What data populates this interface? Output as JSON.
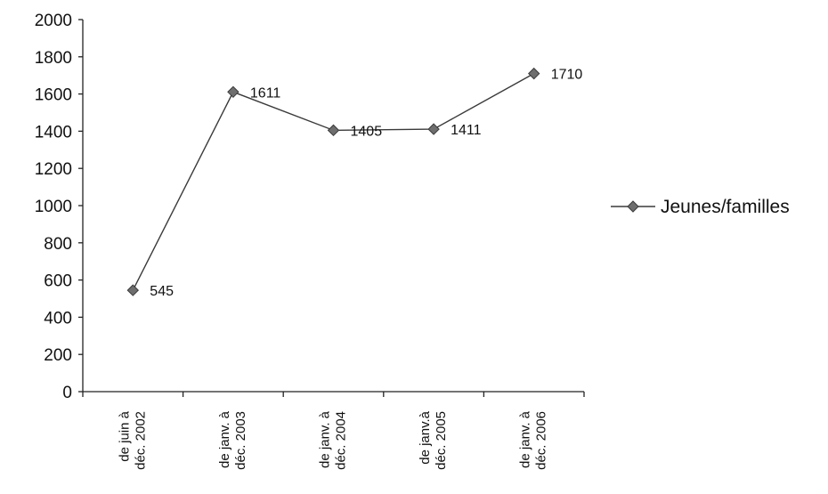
{
  "chart_data": {
    "type": "line",
    "title": "",
    "xlabel": "",
    "ylabel": "",
    "categories": [
      [
        "de juin à",
        "déc. 2002"
      ],
      [
        "de janv. à",
        "déc. 2003"
      ],
      [
        "de janv. à",
        "déc. 2004"
      ],
      [
        "de janv.à",
        "déc. 2005"
      ],
      [
        "de janv. à",
        "déc. 2006"
      ]
    ],
    "series": [
      {
        "name": "Jeunes/familles",
        "values": [
          545,
          1611,
          1405,
          1411,
          1710
        ],
        "color": "#3a3a3a",
        "marker": "diamond"
      }
    ],
    "ylim": [
      0,
      2000
    ],
    "yticks": [
      0,
      200,
      400,
      600,
      800,
      1000,
      1200,
      1400,
      1600,
      1800,
      2000
    ],
    "data_labels": [
      "545",
      "1611",
      "1405",
      "1411",
      "1710"
    ],
    "grid": false,
    "legend_position": "right"
  }
}
